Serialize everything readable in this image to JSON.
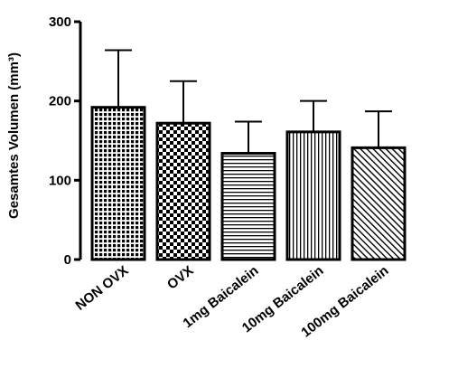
{
  "chart_data": {
    "type": "bar",
    "title": "",
    "xlabel": "",
    "ylabel": "Gesamtes Volumen (mm³)",
    "ylim": [
      0,
      300
    ],
    "yticks": [
      0,
      100,
      200,
      300
    ],
    "grid": false,
    "legend": "none",
    "categories": [
      "NON OVX",
      "OVX",
      "1mg Baicalein",
      "10mg Baicalein",
      "100mg Baicalein"
    ],
    "values": [
      192,
      172,
      134,
      161,
      141
    ],
    "error_upper": [
      264,
      225,
      174,
      200,
      187
    ],
    "patterns": [
      "grid-squares",
      "checkerboard",
      "horizontal-lines",
      "vertical-lines",
      "diagonal-lines"
    ],
    "colors": {
      "bar_fill": "#ffffff",
      "pattern": "#000000",
      "axis": "#000000"
    }
  }
}
